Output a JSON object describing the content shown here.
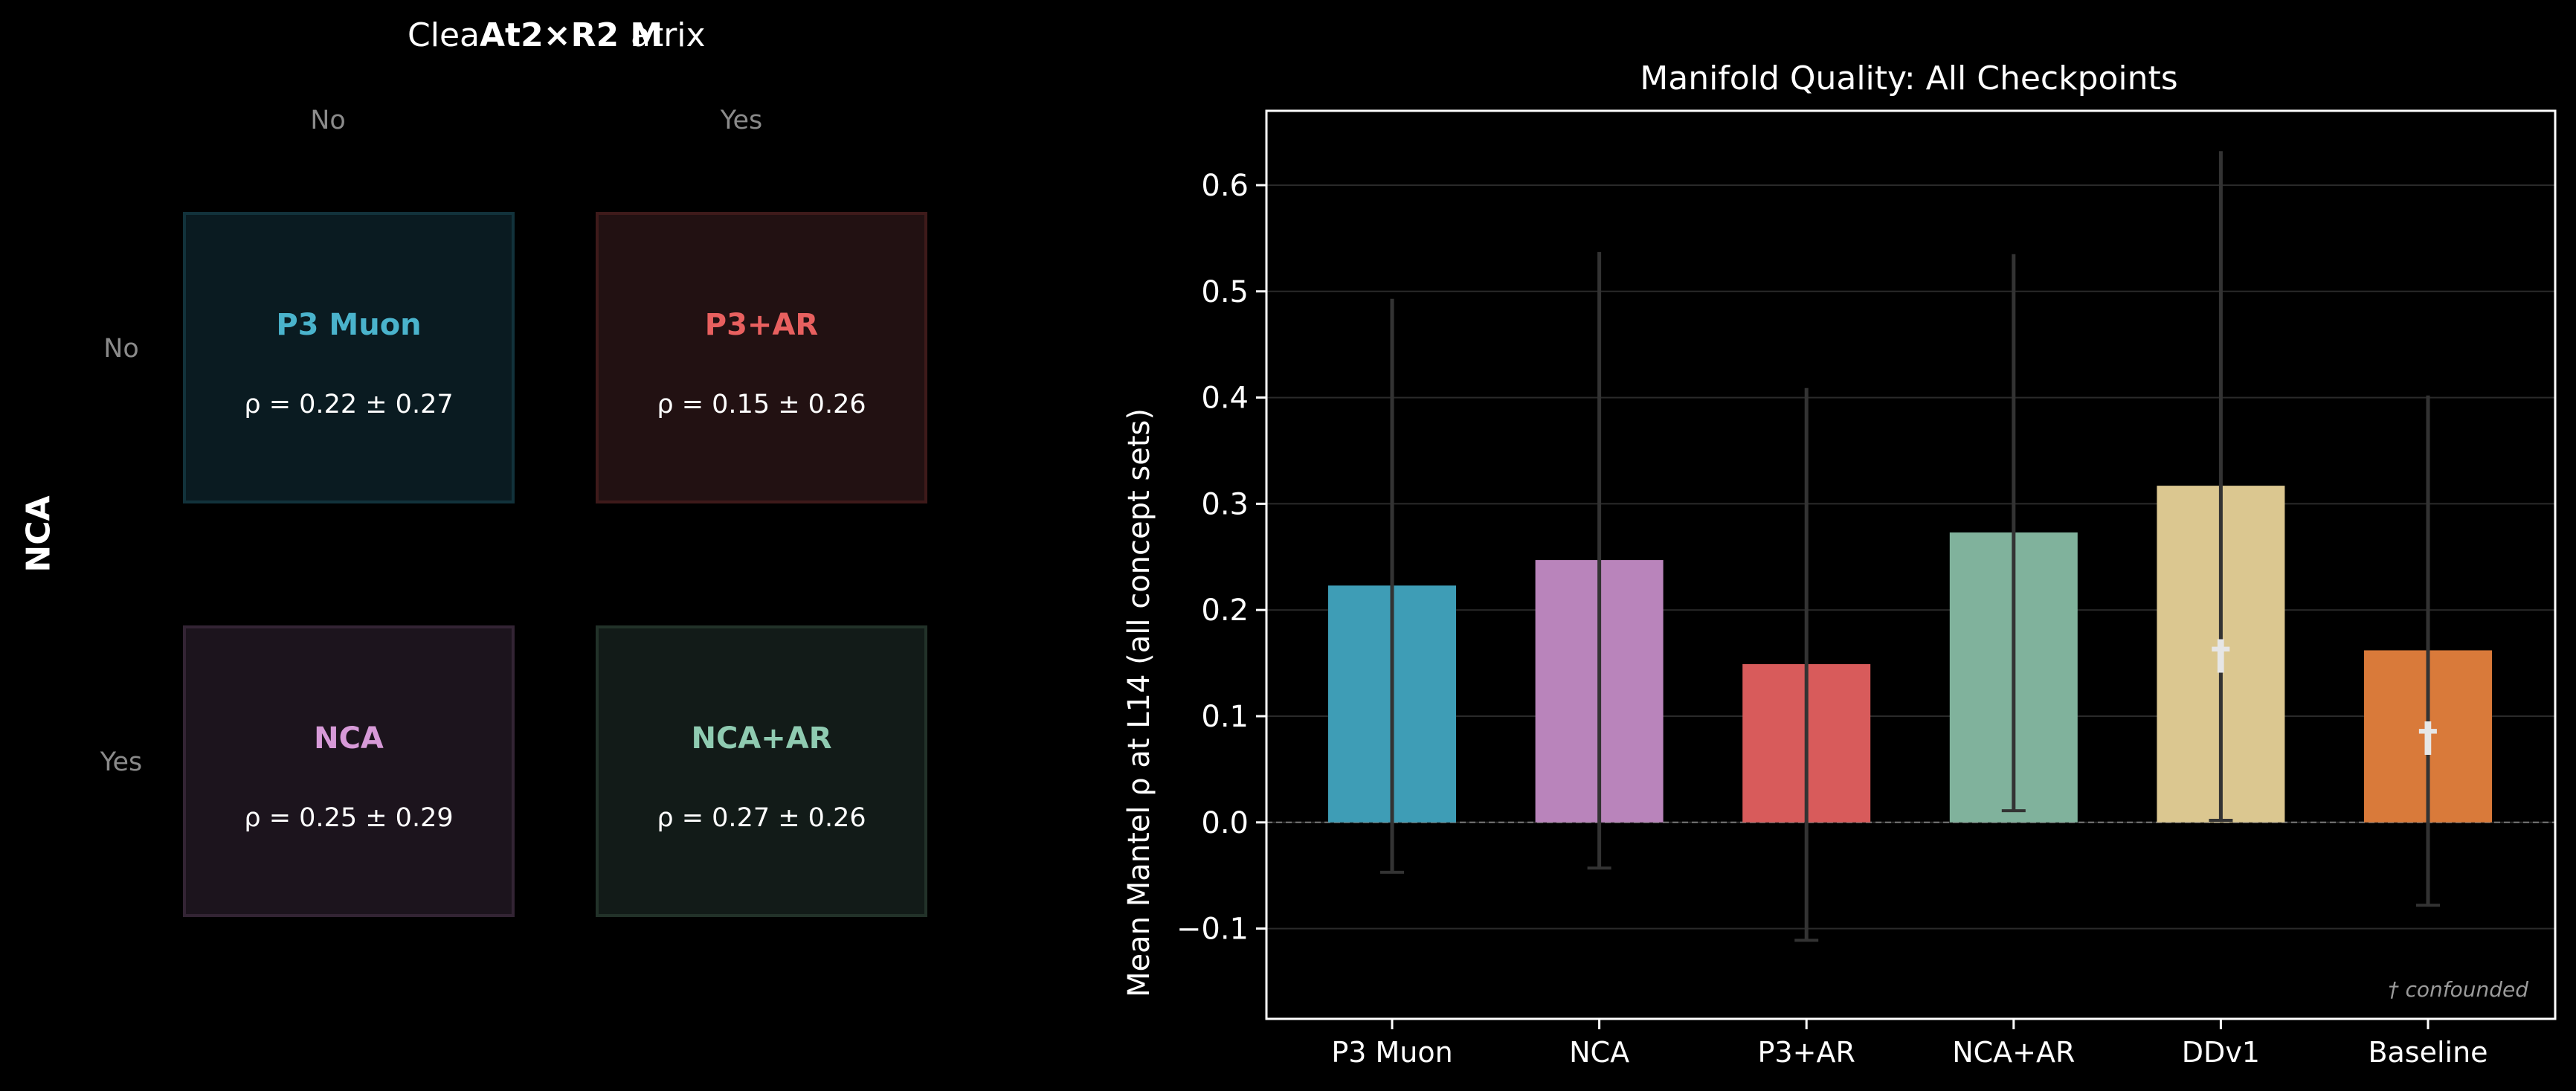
{
  "matrix": {
    "title_fragment_1": "Clea",
    "title_fragment_2": "At2×R2 M",
    "title_fragment_3": "atrix",
    "col_axis": [
      "No",
      "Yes"
    ],
    "row_axis": [
      "No",
      "Yes"
    ],
    "row_title": "NCA",
    "cells": [
      {
        "name": "P3 Muon",
        "rho": "ρ = 0.22 ± 0.27",
        "color": "#4ab3cc"
      },
      {
        "name": "P3+AR",
        "rho": "ρ = 0.15 ± 0.26",
        "color": "#e8605f"
      },
      {
        "name": "NCA",
        "rho": "ρ = 0.25 ± 0.29",
        "color": "#d79ad8"
      },
      {
        "name": "NCA+AR",
        "rho": "ρ = 0.27 ± 0.26",
        "color": "#8fcbb1"
      }
    ]
  },
  "chart_data": {
    "type": "bar",
    "title": "Manifold Quality: All Checkpoints",
    "ylabel": "Mean Mantel ρ at L14 (all concept sets)",
    "xlabel": "",
    "categories": [
      "P3 Muon",
      "NCA",
      "P3+AR",
      "NCA+AR",
      "DDv1",
      "Baseline"
    ],
    "values": [
      0.223,
      0.247,
      0.149,
      0.273,
      0.317,
      0.162
    ],
    "errors": [
      0.27,
      0.29,
      0.26,
      0.262,
      0.315,
      0.24
    ],
    "colors": [
      "#3e9db6",
      "#b984bb",
      "#d85b5b",
      "#80b29c",
      "#dbc790",
      "#d97a3a"
    ],
    "confounded": [
      false,
      false,
      false,
      false,
      true,
      true
    ],
    "confound_marker": "†",
    "annotation": "† confounded",
    "ylim": [
      -0.185,
      0.67
    ],
    "yticks": [
      -0.1,
      0.0,
      0.1,
      0.2,
      0.3,
      0.4,
      0.5,
      0.6
    ],
    "ytick_labels": [
      "−0.1",
      "0.0",
      "0.1",
      "0.2",
      "0.3",
      "0.4",
      "0.5",
      "0.6"
    ],
    "grid": true
  }
}
